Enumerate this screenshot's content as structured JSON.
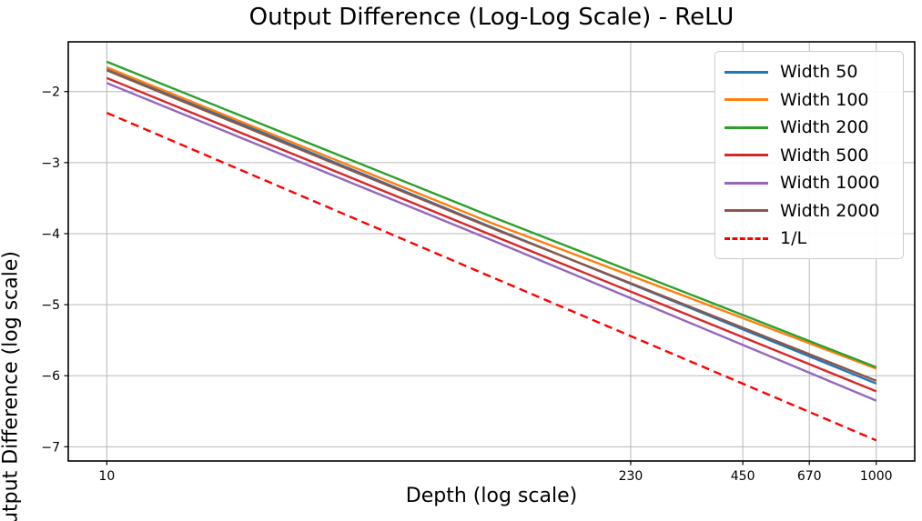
{
  "chart_data": {
    "type": "line",
    "title": "Output Difference (Log-Log Scale) - ReLU",
    "xlabel": "Depth (log scale)",
    "ylabel": "Output Difference (log scale)",
    "x_scale": "log",
    "y_scale": "linear",
    "xlim": [
      7.94,
      1259
    ],
    "ylim": [
      -7.2,
      -1.3
    ],
    "x_ticks": {
      "values": [
        10,
        230,
        450,
        670,
        1000
      ],
      "labels": [
        "10",
        "230",
        "450",
        "670",
        "1000"
      ]
    },
    "y_ticks": {
      "values": [
        -2,
        -3,
        -4,
        -5,
        -6,
        -7
      ],
      "labels": [
        "−2",
        "−3",
        "−4",
        "−5",
        "−6",
        "−7"
      ]
    },
    "grid": true,
    "grid_color": "#b8b8b8",
    "legend_position": "upper right",
    "x": [
      10,
      100,
      1000
    ],
    "series": [
      {
        "name": "Width 50",
        "color": "#1f77b4",
        "dash": "solid",
        "y": [
          -1.67,
          -3.91,
          -6.11
        ]
      },
      {
        "name": "Width 100",
        "color": "#ff7f0e",
        "dash": "solid",
        "y": [
          -1.66,
          -3.85,
          -5.9
        ]
      },
      {
        "name": "Width 200",
        "color": "#2ca02c",
        "dash": "solid",
        "y": [
          -1.58,
          -3.76,
          -5.88
        ]
      },
      {
        "name": "Width 500",
        "color": "#d62728",
        "dash": "solid",
        "y": [
          -1.81,
          -4.02,
          -6.22
        ]
      },
      {
        "name": "Width 1000",
        "color": "#9467bd",
        "dash": "solid",
        "y": [
          -1.88,
          -4.09,
          -6.35
        ]
      },
      {
        "name": "Width 2000",
        "color": "#8c564b",
        "dash": "solid",
        "y": [
          -1.7,
          -3.92,
          -6.07
        ]
      },
      {
        "name": "1/L",
        "color": "#ff0000",
        "dash": "dashed",
        "y": [
          -2.3,
          -4.61,
          -6.91
        ]
      }
    ]
  }
}
